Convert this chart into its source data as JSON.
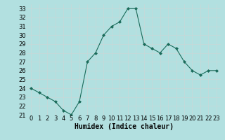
{
  "x": [
    0,
    1,
    2,
    3,
    4,
    5,
    6,
    7,
    8,
    9,
    10,
    11,
    12,
    13,
    14,
    15,
    16,
    17,
    18,
    19,
    20,
    21,
    22,
    23
  ],
  "y": [
    24.0,
    23.5,
    23.0,
    22.5,
    21.5,
    21.0,
    22.5,
    27.0,
    28.0,
    30.0,
    31.0,
    31.5,
    33.0,
    33.0,
    29.0,
    28.5,
    28.0,
    29.0,
    28.5,
    27.0,
    26.0,
    25.5,
    26.0,
    26.0
  ],
  "line_color": "#1a6b5a",
  "marker": "D",
  "marker_size": 2,
  "bg_color": "#b2e0e0",
  "grid_color": "#c8d8d8",
  "xlabel": "Humidex (Indice chaleur)",
  "ylim": [
    21,
    33.5
  ],
  "xlim": [
    -0.5,
    23.5
  ],
  "yticks": [
    21,
    22,
    23,
    24,
    25,
    26,
    27,
    28,
    29,
    30,
    31,
    32,
    33
  ],
  "xticks": [
    0,
    1,
    2,
    3,
    4,
    5,
    6,
    7,
    8,
    9,
    10,
    11,
    12,
    13,
    14,
    15,
    16,
    17,
    18,
    19,
    20,
    21,
    22,
    23
  ],
  "xlabel_fontsize": 7,
  "tick_fontsize": 6
}
